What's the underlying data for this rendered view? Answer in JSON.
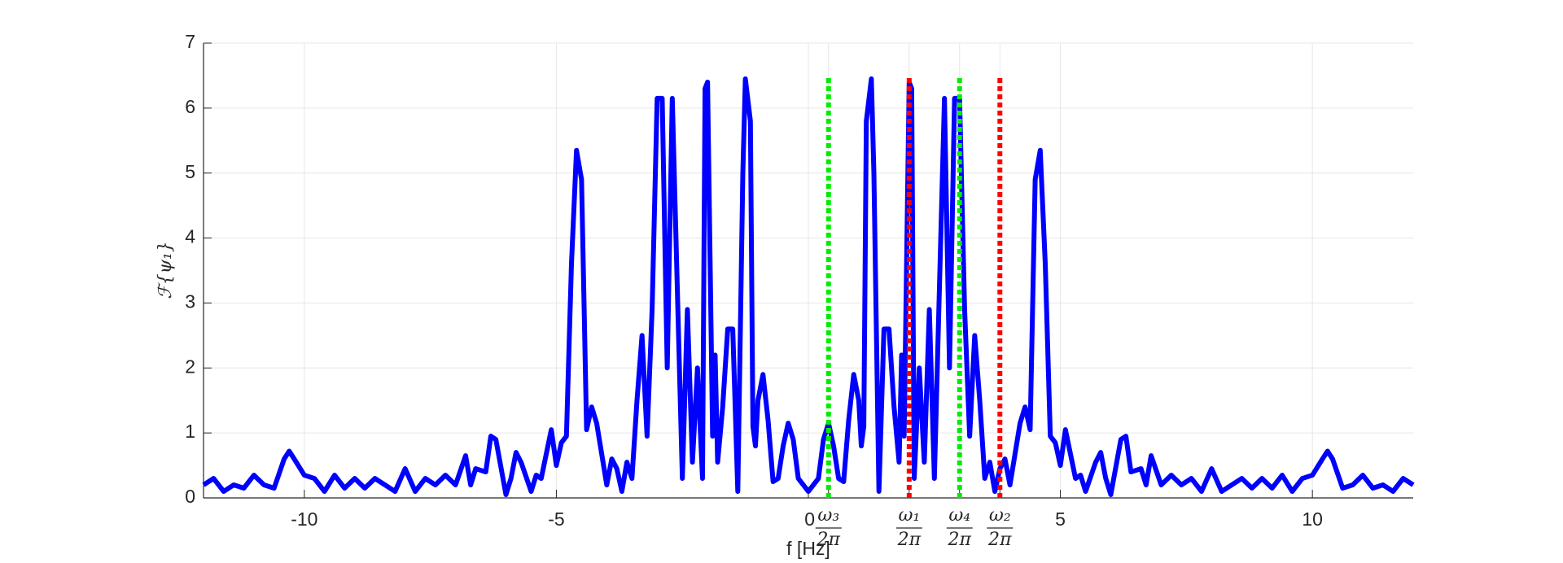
{
  "chart_data": {
    "type": "line",
    "xlabel": "f [Hz]",
    "ylabel": "ℱ{ψ₁}",
    "xlim": [
      -12,
      12
    ],
    "ylim": [
      0,
      7
    ],
    "xticks": [
      -10,
      -5,
      0,
      {
        "value": 0.4,
        "numerator": "ω₃",
        "denominator": "2π"
      },
      {
        "value": 2.0,
        "numerator": "ω₁",
        "denominator": "2π"
      },
      {
        "value": 3.0,
        "numerator": "ω₄",
        "denominator": "2π"
      },
      {
        "value": 3.8,
        "numerator": "ω₂",
        "denominator": "2π"
      },
      5,
      10
    ],
    "yticks": [
      0,
      1,
      2,
      3,
      4,
      5,
      6,
      7
    ],
    "grid": true,
    "vlines": {
      "x": [
        0.4,
        2.0,
        3.0,
        3.8
      ],
      "colors": [
        "#00ee00",
        "#ff0000",
        "#00ee00",
        "#ff0000"
      ],
      "ymax": 6.5
    },
    "series": [
      {
        "color": "#0000ff",
        "x": [
          -12,
          -11.8,
          -11.6,
          -11.4,
          -11.2,
          -11,
          -10.8,
          -10.6,
          -10.4,
          -10.3,
          -10.2,
          -10,
          -9.8,
          -9.6,
          -9.4,
          -9.2,
          -9,
          -8.8,
          -8.6,
          -8.4,
          -8.2,
          -8,
          -7.8,
          -7.6,
          -7.4,
          -7.2,
          -7,
          -6.8,
          -6.7,
          -6.6,
          -6.4,
          -6.3,
          -6.2,
          -6,
          -5.9,
          -5.8,
          -5.7,
          -5.5,
          -5.4,
          -5.3,
          -5.1,
          -5,
          -4.9,
          -4.8,
          -4.7,
          -4.6,
          -4.5,
          -4.4,
          -4.3,
          -4.2,
          -4,
          -3.9,
          -3.8,
          -3.7,
          -3.6,
          -3.5,
          -3.4,
          -3.3,
          -3.2,
          -3.1,
          -3,
          -2.9,
          -2.8,
          -2.7,
          -2.5,
          -2.4,
          -2.3,
          -2.2,
          -2.1,
          -2.05,
          -2,
          -1.9,
          -1.85,
          -1.8,
          -1.7,
          -1.6,
          -1.5,
          -1.4,
          -1.3,
          -1.25,
          -1.15,
          -1.1,
          -1.05,
          -1,
          -0.9,
          -0.8,
          -0.7,
          -0.6,
          -0.5,
          -0.4,
          -0.3,
          -0.2,
          0,
          0.2,
          0.3,
          0.4,
          0.5,
          0.6,
          0.7,
          0.8,
          0.9,
          1,
          1.05,
          1.1,
          1.15,
          1.25,
          1.3,
          1.4,
          1.5,
          1.6,
          1.7,
          1.8,
          1.85,
          1.9,
          2,
          2.05,
          2.1,
          2.2,
          2.3,
          2.4,
          2.5,
          2.7,
          2.8,
          2.9,
          3,
          3.1,
          3.2,
          3.3,
          3.4,
          3.5,
          3.6,
          3.7,
          3.8,
          3.9,
          4,
          4.2,
          4.3,
          4.4,
          4.5,
          4.6,
          4.7,
          4.8,
          4.9,
          5,
          5.1,
          5.3,
          5.4,
          5.5,
          5.7,
          5.8,
          5.9,
          6,
          6.2,
          6.3,
          6.4,
          6.6,
          6.7,
          6.8,
          7,
          7.2,
          7.4,
          7.6,
          7.8,
          8,
          8.2,
          8.4,
          8.6,
          8.8,
          9,
          9.2,
          9.4,
          9.6,
          9.8,
          10,
          10.2,
          10.3,
          10.4,
          10.6,
          10.8,
          11,
          11.2,
          11.4,
          11.6,
          11.8,
          12
        ],
        "values": [
          0.2,
          0.3,
          0.1,
          0.2,
          0.15,
          0.35,
          0.2,
          0.15,
          0.6,
          0.72,
          0.6,
          0.35,
          0.3,
          0.1,
          0.35,
          0.15,
          0.3,
          0.15,
          0.3,
          0.2,
          0.1,
          0.45,
          0.1,
          0.3,
          0.2,
          0.35,
          0.2,
          0.65,
          0.2,
          0.45,
          0.4,
          0.95,
          0.9,
          0.05,
          0.3,
          0.7,
          0.55,
          0.1,
          0.35,
          0.3,
          1.05,
          0.5,
          0.85,
          0.95,
          3.6,
          5.35,
          4.9,
          1.05,
          1.4,
          1.15,
          0.2,
          0.6,
          0.45,
          0.1,
          0.55,
          0.3,
          1.5,
          2.5,
          0.95,
          2.9,
          6.15,
          6.15,
          2.0,
          6.15,
          0.3,
          2.9,
          0.55,
          2.0,
          0.3,
          6.3,
          6.4,
          0.95,
          2.2,
          0.55,
          1.4,
          2.6,
          2.6,
          0.1,
          5.0,
          6.45,
          5.8,
          1.1,
          0.8,
          1.5,
          1.9,
          1.2,
          0.25,
          0.3,
          0.8,
          1.15,
          0.9,
          0.3,
          0.1,
          0.3,
          0.9,
          1.15,
          0.8,
          0.3,
          0.25,
          1.2,
          1.9,
          1.5,
          0.8,
          1.1,
          5.8,
          6.45,
          5.0,
          0.1,
          2.6,
          2.6,
          1.4,
          0.55,
          2.2,
          0.95,
          6.4,
          6.3,
          0.3,
          2.0,
          0.55,
          2.9,
          0.3,
          6.15,
          2.0,
          6.15,
          6.15,
          2.9,
          0.95,
          2.5,
          1.5,
          0.3,
          0.55,
          0.1,
          0.45,
          0.6,
          0.2,
          1.15,
          1.4,
          1.05,
          4.9,
          5.35,
          3.6,
          0.95,
          0.85,
          0.5,
          1.05,
          0.3,
          0.35,
          0.1,
          0.55,
          0.7,
          0.3,
          0.05,
          0.9,
          0.95,
          0.4,
          0.45,
          0.2,
          0.65,
          0.2,
          0.35,
          0.2,
          0.3,
          0.1,
          0.45,
          0.1,
          0.2,
          0.3,
          0.15,
          0.3,
          0.15,
          0.35,
          0.1,
          0.3,
          0.35,
          0.6,
          0.72,
          0.6,
          0.15,
          0.2,
          0.35,
          0.15,
          0.2,
          0.1,
          0.3,
          0.2
        ]
      }
    ]
  }
}
